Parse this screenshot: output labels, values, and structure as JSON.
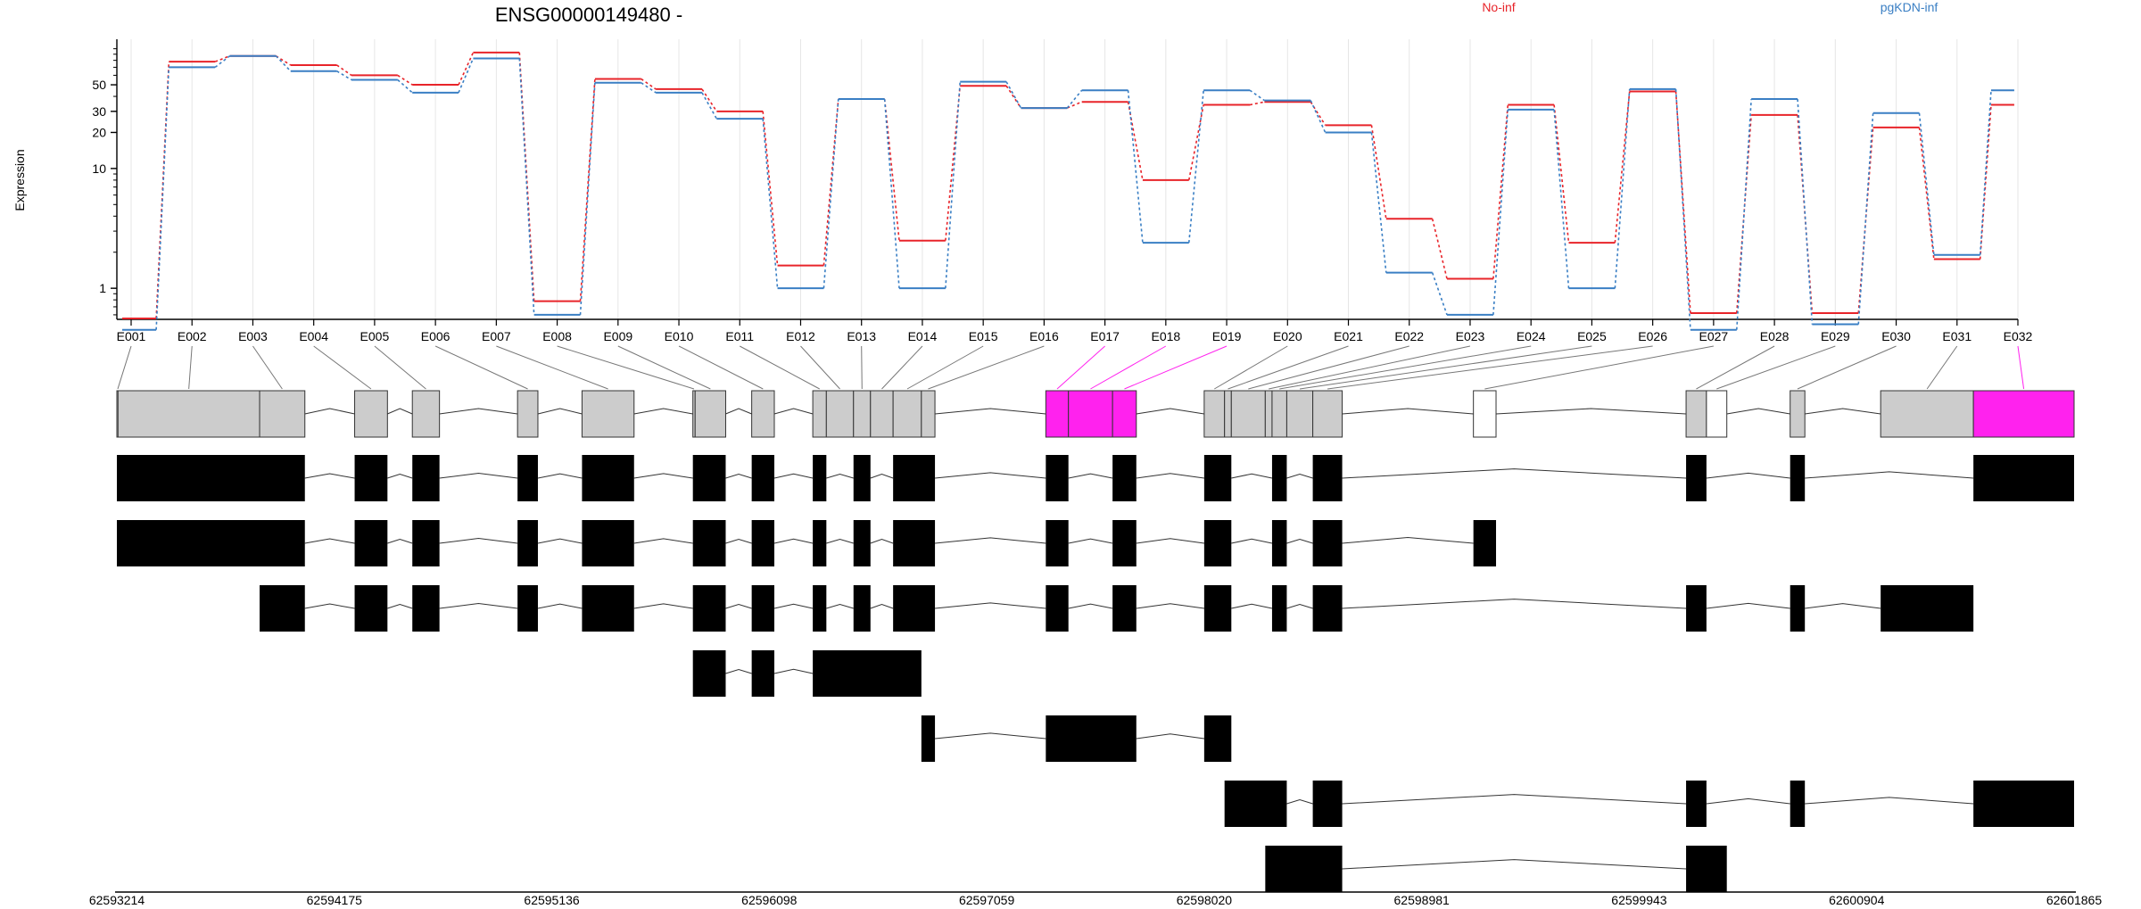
{
  "chart_data": {
    "type": "line",
    "title": "ENSG00000149480 -",
    "xlabel": "",
    "ylabel": "Expression",
    "y_scale": "log",
    "ylim": [
      0.55,
      120
    ],
    "y_ticks": [
      {
        "value": 1,
        "label": "1"
      },
      {
        "value": 10,
        "label": "10"
      },
      {
        "value": 20,
        "label": "20"
      },
      {
        "value": 30,
        "label": "30"
      },
      {
        "value": 50,
        "label": "50"
      }
    ],
    "categories": [
      "E001",
      "E002",
      "E003",
      "E004",
      "E005",
      "E006",
      "E007",
      "E008",
      "E009",
      "E010",
      "E011",
      "E012",
      "E013",
      "E014",
      "E015",
      "E016",
      "E017",
      "E018",
      "E019",
      "E020",
      "E021",
      "E022",
      "E023",
      "E024",
      "E025",
      "E026",
      "E027",
      "E028",
      "E029",
      "E030",
      "E031",
      "E032"
    ],
    "series": [
      {
        "name": "No-inf",
        "color": "#e8242a",
        "values": [
          0.56,
          78,
          87,
          73,
          60,
          50,
          93,
          0.78,
          56,
          46,
          30,
          1.55,
          38,
          2.5,
          49,
          32,
          36,
          8.0,
          34,
          36,
          23,
          3.8,
          1.2,
          34,
          2.4,
          44,
          0.62,
          28,
          0.62,
          22,
          1.75,
          34
        ]
      },
      {
        "name": "pgKDN-inf",
        "color": "#3a7fc4",
        "values": [
          0.45,
          70,
          87,
          65,
          55,
          43,
          83,
          0.6,
          52,
          43,
          26,
          1.0,
          38,
          1.0,
          53,
          32,
          45,
          2.4,
          45,
          37,
          20,
          1.35,
          0.6,
          31,
          1.0,
          46,
          0.45,
          38,
          0.5,
          29,
          1.9,
          45
        ]
      }
    ],
    "genomic_axis": {
      "labels": [
        "62593214",
        "62594175",
        "62595136",
        "62596098",
        "62597059",
        "62598020",
        "62598981",
        "62599943",
        "62600904",
        "62601865"
      ]
    },
    "gene_model": {
      "highlight_color": "#ff22ee",
      "exon_color": "#cccccc",
      "exons": [
        {
          "id": "E001",
          "start": 62593214,
          "end": 62593219,
          "fill": "grey"
        },
        {
          "id": "E002",
          "start": 62593219,
          "end": 62593845,
          "fill": "grey"
        },
        {
          "id": "E003",
          "start": 62593845,
          "end": 62594045,
          "fill": "grey"
        },
        {
          "id": "E004",
          "start": 62594265,
          "end": 62594410,
          "fill": "grey"
        },
        {
          "id": "E005",
          "start": 62594520,
          "end": 62594640,
          "fill": "grey"
        },
        {
          "id": "E006",
          "start": 62594985,
          "end": 62595075,
          "fill": "grey"
        },
        {
          "id": "E007",
          "start": 62595270,
          "end": 62595500,
          "fill": "grey"
        },
        {
          "id": "E008",
          "start": 62595760,
          "end": 62595770,
          "fill": "grey"
        },
        {
          "id": "E009",
          "start": 62595770,
          "end": 62595905,
          "fill": "grey"
        },
        {
          "id": "E010",
          "start": 62596020,
          "end": 62596120,
          "fill": "grey"
        },
        {
          "id": "E011",
          "start": 62596290,
          "end": 62596350,
          "fill": "grey"
        },
        {
          "id": "E012",
          "start": 62596350,
          "end": 62596470,
          "fill": "grey"
        },
        {
          "id": "E013",
          "start": 62596470,
          "end": 62596545,
          "fill": "grey"
        },
        {
          "id": "E014",
          "start": 62596545,
          "end": 62596645,
          "fill": "grey"
        },
        {
          "id": "E015",
          "start": 62596645,
          "end": 62596770,
          "fill": "grey"
        },
        {
          "id": "E016",
          "start": 62596770,
          "end": 62596830,
          "fill": "grey"
        },
        {
          "id": "E017",
          "start": 62597320,
          "end": 62597420,
          "fill": "highlight"
        },
        {
          "id": "E018",
          "start": 62597420,
          "end": 62597615,
          "fill": "highlight"
        },
        {
          "id": "E019",
          "start": 62597615,
          "end": 62597720,
          "fill": "highlight"
        },
        {
          "id": "E020",
          "start": 62598020,
          "end": 62598110,
          "fill": "grey"
        },
        {
          "id": "E021",
          "start": 62598110,
          "end": 62598140,
          "fill": "grey"
        },
        {
          "id": "E022",
          "start": 62598140,
          "end": 62598290,
          "fill": "grey"
        },
        {
          "id": "E023",
          "start": 62598290,
          "end": 62598320,
          "fill": "grey"
        },
        {
          "id": "E024",
          "start": 62598320,
          "end": 62598385,
          "fill": "grey"
        },
        {
          "id": "E025",
          "start": 62598385,
          "end": 62598500,
          "fill": "grey"
        },
        {
          "id": "E026",
          "start": 62598500,
          "end": 62598630,
          "fill": "grey"
        },
        {
          "id": "E027",
          "start": 62599210,
          "end": 62599310,
          "fill": "white"
        },
        {
          "id": "E028",
          "start": 62600150,
          "end": 62600240,
          "fill": "grey"
        },
        {
          "id": "E029",
          "start": 62600240,
          "end": 62600330,
          "fill": "white"
        },
        {
          "id": "E030",
          "start": 62600610,
          "end": 62600675,
          "fill": "grey"
        },
        {
          "id": "E031",
          "start": 62601010,
          "end": 62601420,
          "fill": "grey"
        },
        {
          "id": "E032",
          "start": 62601420,
          "end": 62601865,
          "fill": "highlight"
        }
      ],
      "transcripts": [
        [
          [
            62593214,
            62594045
          ],
          [
            62594265,
            62594410
          ],
          [
            62594520,
            62594640
          ],
          [
            62594985,
            62595075
          ],
          [
            62595270,
            62595500
          ],
          [
            62595760,
            62595905
          ],
          [
            62596020,
            62596120
          ],
          [
            62596290,
            62596350
          ],
          [
            62596470,
            62596545
          ],
          [
            62596645,
            62596830
          ],
          [
            62597320,
            62597420
          ],
          [
            62597615,
            62597720
          ],
          [
            62598020,
            62598140
          ],
          [
            62598320,
            62598385
          ],
          [
            62598500,
            62598630
          ],
          [
            62600150,
            62600240
          ],
          [
            62600610,
            62600675
          ],
          [
            62601420,
            62601865
          ]
        ],
        [
          [
            62593214,
            62594045
          ],
          [
            62594265,
            62594410
          ],
          [
            62594520,
            62594640
          ],
          [
            62594985,
            62595075
          ],
          [
            62595270,
            62595500
          ],
          [
            62595760,
            62595905
          ],
          [
            62596020,
            62596120
          ],
          [
            62596290,
            62596350
          ],
          [
            62596470,
            62596545
          ],
          [
            62596645,
            62596830
          ],
          [
            62597320,
            62597420
          ],
          [
            62597615,
            62597720
          ],
          [
            62598020,
            62598140
          ],
          [
            62598320,
            62598385
          ],
          [
            62598500,
            62598630
          ],
          [
            62599210,
            62599310
          ]
        ],
        [
          [
            62593845,
            62594045
          ],
          [
            62594265,
            62594410
          ],
          [
            62594520,
            62594640
          ],
          [
            62594985,
            62595075
          ],
          [
            62595270,
            62595500
          ],
          [
            62595760,
            62595905
          ],
          [
            62596020,
            62596120
          ],
          [
            62596290,
            62596350
          ],
          [
            62596470,
            62596545
          ],
          [
            62596645,
            62596830
          ],
          [
            62597320,
            62597420
          ],
          [
            62597615,
            62597720
          ],
          [
            62598020,
            62598140
          ],
          [
            62598320,
            62598385
          ],
          [
            62598500,
            62598630
          ],
          [
            62600150,
            62600240
          ],
          [
            62600610,
            62600675
          ],
          [
            62601010,
            62601420
          ]
        ],
        [
          [
            62595760,
            62595905
          ],
          [
            62596020,
            62596120
          ],
          [
            62596290,
            62596770
          ]
        ],
        [
          [
            62596770,
            62596830
          ],
          [
            62597320,
            62597720
          ],
          [
            62598020,
            62598140
          ]
        ],
        [
          [
            62598110,
            62598385
          ],
          [
            62598500,
            62598630
          ],
          [
            62600150,
            62600240
          ],
          [
            62600610,
            62600675
          ],
          [
            62601420,
            62601865
          ]
        ],
        [
          [
            62598290,
            62598630
          ],
          [
            62600150,
            62600330
          ]
        ]
      ]
    }
  }
}
